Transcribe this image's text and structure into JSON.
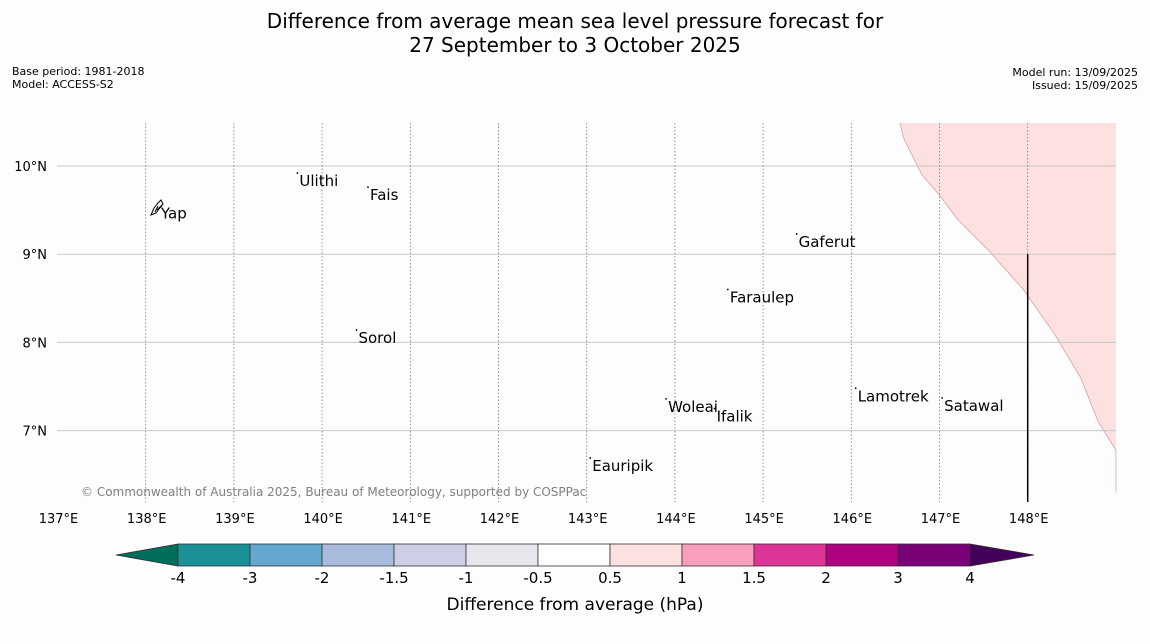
{
  "header": {
    "title_line1": "Difference from average mean sea level pressure forecast for",
    "title_line2": "27 September to 3 October 2025",
    "base_period": "Base period: 1981-2018",
    "model": "Model: ACCESS-S2",
    "model_run": "Model run: 13/09/2025",
    "issued": "Issued: 15/09/2025"
  },
  "map": {
    "lon_range": [
      137,
      149
    ],
    "lat_range": [
      6.3,
      10.5
    ],
    "lat_labels": [
      {
        "lat": 10,
        "label": "10°N"
      },
      {
        "lat": 9,
        "label": "9°N"
      },
      {
        "lat": 8,
        "label": "8°N"
      },
      {
        "lat": 7,
        "label": "7°N"
      }
    ],
    "lon_labels": [
      {
        "lon": 137,
        "label": "137°E"
      },
      {
        "lon": 138,
        "label": "138°E"
      },
      {
        "lon": 139,
        "label": "139°E"
      },
      {
        "lon": 140,
        "label": "140°E"
      },
      {
        "lon": 141,
        "label": "141°E"
      },
      {
        "lon": 142,
        "label": "142°E"
      },
      {
        "lon": 143,
        "label": "143°E"
      },
      {
        "lon": 144,
        "label": "144°E"
      },
      {
        "lon": 145,
        "label": "145°E"
      },
      {
        "lon": 146,
        "label": "146°E"
      },
      {
        "lon": 147,
        "label": "147°E"
      },
      {
        "lon": 148,
        "label": "148°E"
      }
    ],
    "anomaly_region": {
      "category": "0.5 to 1",
      "color": "#fde0e0",
      "boundary": [
        [
          146.55,
          10.5
        ],
        [
          146.6,
          10.3
        ],
        [
          146.8,
          9.9
        ],
        [
          147.0,
          9.67
        ],
        [
          147.2,
          9.4
        ],
        [
          147.55,
          9.05
        ],
        [
          147.95,
          8.6
        ],
        [
          148.3,
          8.1
        ],
        [
          148.6,
          7.6
        ],
        [
          148.8,
          7.1
        ],
        [
          149.0,
          6.78
        ],
        [
          149.0,
          6.3
        ]
      ]
    },
    "boundary_line": {
      "lon": 148.0,
      "lat_top": 9.0,
      "color": "#000000"
    },
    "places": [
      {
        "name": "Yap",
        "lon": 138.15,
        "lat": 9.55
      },
      {
        "name": "Ulithi",
        "lon": 139.72,
        "lat": 9.92
      },
      {
        "name": "Fais",
        "lon": 140.52,
        "lat": 9.76
      },
      {
        "name": "Gaferut",
        "lon": 145.38,
        "lat": 9.23
      },
      {
        "name": "Faraulep",
        "lon": 144.6,
        "lat": 8.6
      },
      {
        "name": "Sorol",
        "lon": 140.39,
        "lat": 8.14
      },
      {
        "name": "Lamotrek",
        "lon": 146.05,
        "lat": 7.48
      },
      {
        "name": "Woleai",
        "lon": 143.9,
        "lat": 7.36
      },
      {
        "name": "Ifalik",
        "lon": 144.45,
        "lat": 7.25
      },
      {
        "name": "Satawal",
        "lon": 147.03,
        "lat": 7.37
      },
      {
        "name": "Eauripik",
        "lon": 143.04,
        "lat": 6.69
      }
    ],
    "copyright": "© Commonwealth of Australia 2025, Bureau of Meteorology, supported by COSPPac"
  },
  "colorbar": {
    "title": "Difference from average (hPa)",
    "tick_labels": [
      "-4",
      "-3",
      "-2",
      "-1.5",
      "-1",
      "-0.5",
      "0.5",
      "1",
      "1.5",
      "2",
      "3",
      "4"
    ],
    "low_extend_color": "#006e5a",
    "high_extend_color": "#43005a",
    "colors": [
      "#1a9196",
      "#64a8d0",
      "#a9bbdd",
      "#cdcfe6",
      "#e8e6ed",
      "#ffffff",
      "#fde0e0",
      "#f99ebb",
      "#de3497",
      "#ae027e",
      "#7a0177"
    ],
    "outline_color": "#333333"
  }
}
